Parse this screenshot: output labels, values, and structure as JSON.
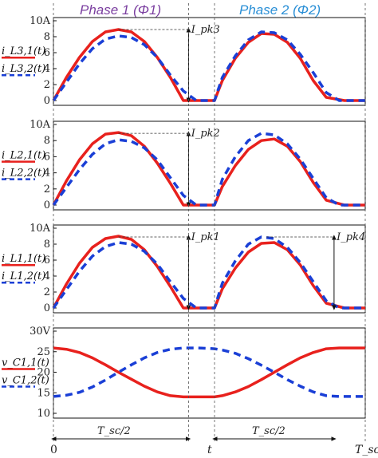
{
  "header": {
    "phase1": "Phase 1 (Φ1)",
    "phase2": "Phase 2 (Φ2)",
    "phase1_color": "#7b3fa0",
    "phase2_color": "#2a8fd6"
  },
  "colors": {
    "red": "#e8211d",
    "blue": "#1a3fd6"
  },
  "chart_data": [
    {
      "type": "line",
      "ylim": [
        0,
        10
      ],
      "yticks": [
        "0",
        "2",
        "4",
        "6",
        "8",
        "10A"
      ],
      "ylabels": [
        "i_L3,1(t)",
        "i_L3,2(t)"
      ],
      "annotation": "I_pk3",
      "series": [
        {
          "name": "i_L3,1(t)",
          "color": "#e8211d",
          "style": "solid",
          "x": [
            0,
            0.05,
            0.1,
            0.15,
            0.2,
            0.25,
            0.3,
            0.35,
            0.4,
            0.45,
            0.5,
            0.5,
            0.62,
            0.62,
            0.65,
            0.7,
            0.75,
            0.8,
            0.85,
            0.9,
            0.95,
            1.0,
            1.05,
            1.12,
            1.12,
            1.2
          ],
          "y": [
            0,
            2.9,
            5.4,
            7.4,
            8.6,
            8.9,
            8.6,
            7.4,
            5.4,
            2.9,
            0,
            0,
            0,
            0,
            2.5,
            5.3,
            7.3,
            8.4,
            8.3,
            7.3,
            5.3,
            2.5,
            0.4,
            0,
            0,
            0
          ]
        },
        {
          "name": "i_L3,2(t)",
          "color": "#1a3fd6",
          "style": "dashed",
          "x": [
            0,
            0.05,
            0.1,
            0.15,
            0.2,
            0.25,
            0.3,
            0.35,
            0.4,
            0.45,
            0.5,
            0.55,
            0.55,
            0.62,
            0.65,
            0.7,
            0.75,
            0.8,
            0.85,
            0.9,
            0.95,
            1.0,
            1.05,
            1.1,
            1.1,
            1.2
          ],
          "y": [
            0,
            2.3,
            4.6,
            6.5,
            7.7,
            8.1,
            7.9,
            7.0,
            5.4,
            3.2,
            1.2,
            0,
            0,
            0,
            2.9,
            5.6,
            7.6,
            8.6,
            8.5,
            7.6,
            5.8,
            3.5,
            1.0,
            0,
            0,
            0
          ]
        }
      ]
    },
    {
      "type": "line",
      "ylim": [
        0,
        10
      ],
      "yticks": [
        "0",
        "2",
        "4",
        "6",
        "8",
        "10A"
      ],
      "ylabels": [
        "i_L2,1(t)",
        "i_L2,2(t)"
      ],
      "annotation": "I_pk2",
      "series": [
        {
          "name": "i_L2,1(t)",
          "color": "#e8211d",
          "style": "solid",
          "x": [
            0,
            0.05,
            0.1,
            0.15,
            0.2,
            0.25,
            0.3,
            0.35,
            0.4,
            0.45,
            0.5,
            0.5,
            0.62,
            0.62,
            0.65,
            0.7,
            0.75,
            0.8,
            0.85,
            0.9,
            0.95,
            1.0,
            1.05,
            1.12,
            1.12,
            1.2
          ],
          "y": [
            0,
            3.0,
            5.6,
            7.6,
            8.8,
            9.0,
            8.6,
            7.3,
            5.2,
            2.7,
            0,
            0,
            0,
            0,
            2.3,
            4.9,
            6.9,
            8.0,
            8.2,
            7.3,
            5.4,
            2.8,
            0.6,
            0,
            0,
            0
          ]
        },
        {
          "name": "i_L2,2(t)",
          "color": "#1a3fd6",
          "style": "dashed",
          "x": [
            0,
            0.05,
            0.1,
            0.15,
            0.2,
            0.25,
            0.3,
            0.35,
            0.4,
            0.45,
            0.5,
            0.55,
            0.55,
            0.62,
            0.65,
            0.7,
            0.75,
            0.8,
            0.85,
            0.9,
            0.95,
            1.0,
            1.05,
            1.1,
            1.1,
            1.2
          ],
          "y": [
            0,
            2.2,
            4.4,
            6.3,
            7.6,
            8.1,
            7.9,
            7.1,
            5.6,
            3.4,
            1.2,
            0,
            0,
            0,
            3.2,
            6.0,
            8.0,
            8.9,
            8.7,
            7.6,
            5.7,
            3.3,
            0.9,
            0,
            0,
            0
          ]
        }
      ]
    },
    {
      "type": "line",
      "ylim": [
        0,
        10
      ],
      "yticks": [
        "0",
        "2",
        "4",
        "6",
        "8",
        "10A"
      ],
      "ylabels": [
        "i_L1,1(t)",
        "i_L1,2(t)"
      ],
      "annotation": "I_pk1",
      "annotation2": "I_pk4",
      "series": [
        {
          "name": "i_L1,1(t)",
          "color": "#e8211d",
          "style": "solid",
          "x": [
            0,
            0.05,
            0.1,
            0.15,
            0.2,
            0.25,
            0.3,
            0.35,
            0.4,
            0.45,
            0.5,
            0.5,
            0.62,
            0.62,
            0.65,
            0.7,
            0.75,
            0.8,
            0.85,
            0.9,
            0.95,
            1.0,
            1.05,
            1.12,
            1.12,
            1.2
          ],
          "y": [
            0,
            3.0,
            5.6,
            7.6,
            8.7,
            9.0,
            8.6,
            7.3,
            5.2,
            2.7,
            0,
            0,
            0,
            0,
            2.4,
            5.0,
            7.0,
            8.1,
            8.2,
            7.3,
            5.4,
            2.8,
            0.6,
            0,
            0,
            0
          ]
        },
        {
          "name": "i_L1,2(t)",
          "color": "#1a3fd6",
          "style": "dashed",
          "x": [
            0,
            0.05,
            0.1,
            0.15,
            0.2,
            0.25,
            0.3,
            0.35,
            0.4,
            0.45,
            0.5,
            0.55,
            0.55,
            0.62,
            0.65,
            0.7,
            0.75,
            0.8,
            0.85,
            0.9,
            0.95,
            1.0,
            1.05,
            1.1,
            1.1,
            1.2
          ],
          "y": [
            0,
            2.3,
            4.6,
            6.5,
            7.7,
            8.2,
            8.0,
            7.1,
            5.5,
            3.3,
            1.2,
            0,
            0,
            0,
            3.1,
            5.9,
            8.0,
            8.9,
            8.7,
            7.6,
            5.7,
            3.3,
            0.9,
            0,
            0,
            0
          ]
        }
      ]
    },
    {
      "type": "line",
      "ylim": [
        10,
        30
      ],
      "yticks": [
        "10",
        "15",
        "20",
        "25",
        "30V"
      ],
      "ylabels": [
        "v_C1,1(t)",
        "v_C1,2(t)"
      ],
      "series": [
        {
          "name": "v_C1,1(t)",
          "color": "#e8211d",
          "style": "solid",
          "x": [
            0,
            0.05,
            0.1,
            0.15,
            0.2,
            0.25,
            0.3,
            0.35,
            0.4,
            0.45,
            0.5,
            0.55,
            0.6,
            0.62,
            0.65,
            0.7,
            0.75,
            0.8,
            0.85,
            0.9,
            0.95,
            1.0,
            1.05,
            1.1,
            1.15,
            1.2
          ],
          "y": [
            25.9,
            25.6,
            24.8,
            23.5,
            21.8,
            20.0,
            18.3,
            16.6,
            15.2,
            14.3,
            14.0,
            14.0,
            14.0,
            14.0,
            14.3,
            15.2,
            16.5,
            18.2,
            20.0,
            21.8,
            23.5,
            24.8,
            25.7,
            25.9,
            25.9,
            25.9
          ]
        },
        {
          "name": "v_C1,2(t)",
          "color": "#1a3fd6",
          "style": "dashed",
          "x": [
            0,
            0.05,
            0.1,
            0.15,
            0.2,
            0.25,
            0.3,
            0.35,
            0.4,
            0.45,
            0.5,
            0.55,
            0.6,
            0.62,
            0.65,
            0.7,
            0.75,
            0.8,
            0.85,
            0.9,
            0.95,
            1.0,
            1.05,
            1.1,
            1.15,
            1.2
          ],
          "y": [
            14.1,
            14.4,
            15.1,
            16.4,
            18.1,
            20.0,
            21.8,
            23.5,
            24.8,
            25.6,
            25.9,
            25.9,
            25.8,
            25.7,
            25.4,
            24.6,
            23.3,
            21.7,
            20.0,
            18.2,
            16.6,
            15.2,
            14.3,
            14.1,
            14.1,
            14.1
          ]
        }
      ]
    }
  ],
  "x_axis": {
    "tick_0": "0",
    "tick_t": "t",
    "tick_Tsc": "T_sc",
    "span1": "T_sc/2",
    "span2": "T_sc/2"
  }
}
